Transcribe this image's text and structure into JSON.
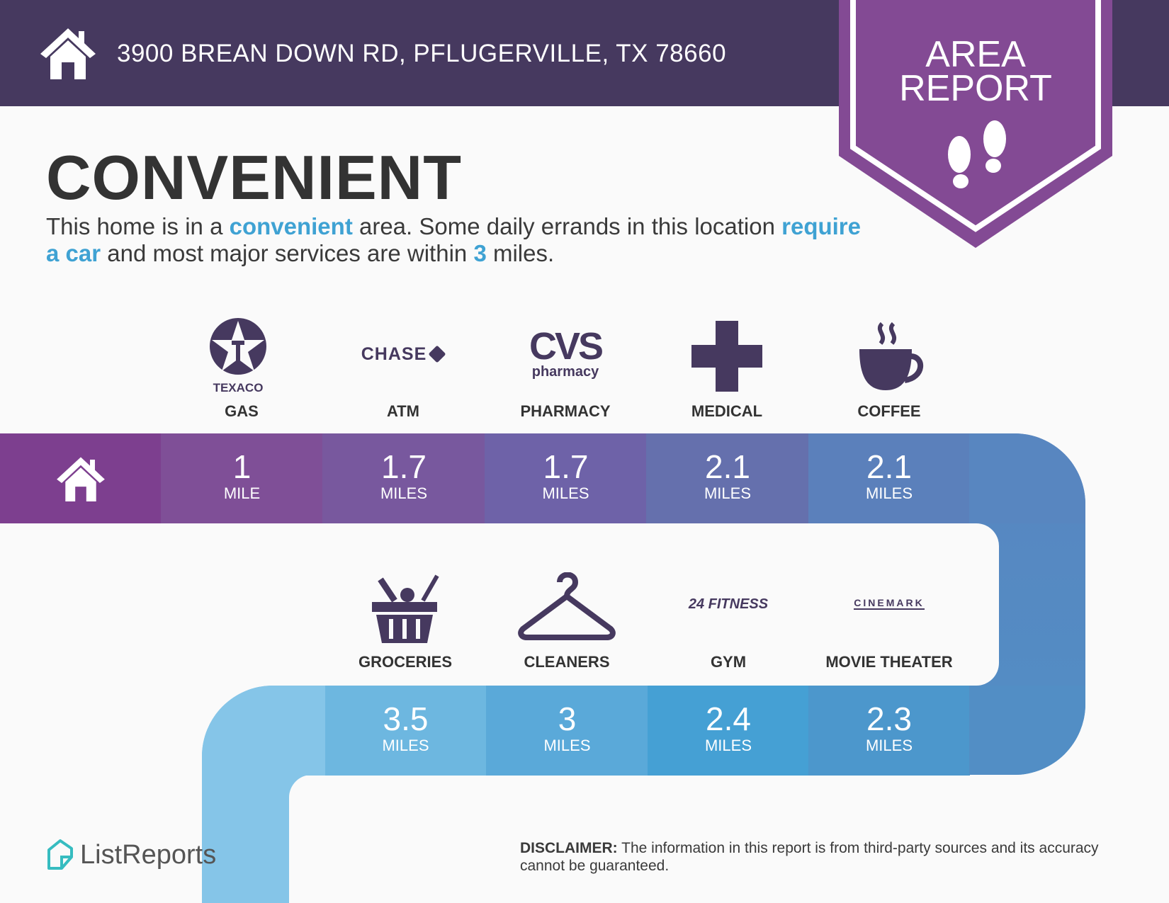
{
  "header": {
    "address": "3900 BREAN DOWN RD, PFLUGERVILLE, TX 78660",
    "icon": "home-icon"
  },
  "banner": {
    "line1": "AREA",
    "line2": "REPORT",
    "icon": "footprints-icon",
    "color": "#834a94"
  },
  "title": "CONVENIENT",
  "description": {
    "p1": "This home is in a ",
    "h1": "convenient",
    "p2": " area. Some daily errands in this location ",
    "h2": "require a car",
    "p3": " and most major services are within ",
    "h3": "3",
    "p4": " miles."
  },
  "row1": [
    {
      "label": "GAS",
      "logo": "TEXACO",
      "distance": "1",
      "unit": "MILE",
      "color": "#7f4f97"
    },
    {
      "label": "ATM",
      "logo": "CHASE",
      "distance": "1.7",
      "unit": "MILES",
      "color": "#78589e"
    },
    {
      "label": "PHARMACY",
      "logo": "CVS",
      "logo_sub": "pharmacy",
      "distance": "1.7",
      "unit": "MILES",
      "color": "#6e62a8"
    },
    {
      "label": "MEDICAL",
      "distance": "2.1",
      "unit": "MILES",
      "color": "#6570ad"
    },
    {
      "label": "COFFEE",
      "distance": "2.1",
      "unit": "MILES",
      "color": "#5b80bb"
    }
  ],
  "row2": [
    {
      "label": "GROCERIES",
      "distance": "3.5",
      "unit": "MILES",
      "color": "#6db7e0"
    },
    {
      "label": "CLEANERS",
      "distance": "3",
      "unit": "MILES",
      "color": "#5aa9d9"
    },
    {
      "label": "GYM",
      "logo": "24 FITNESS",
      "distance": "2.4",
      "unit": "MILES",
      "color": "#45a0d4"
    },
    {
      "label": "MOVIE THEATER",
      "logo": "CINEMARK",
      "distance": "2.3",
      "unit": "MILES",
      "color": "#4c97cc"
    }
  ],
  "footer": {
    "brand": "ListReports",
    "disclaimer_label": "DISCLAIMER:",
    "disclaimer": " The information in this report is from third-party sources and its accuracy cannot be guaranteed."
  }
}
